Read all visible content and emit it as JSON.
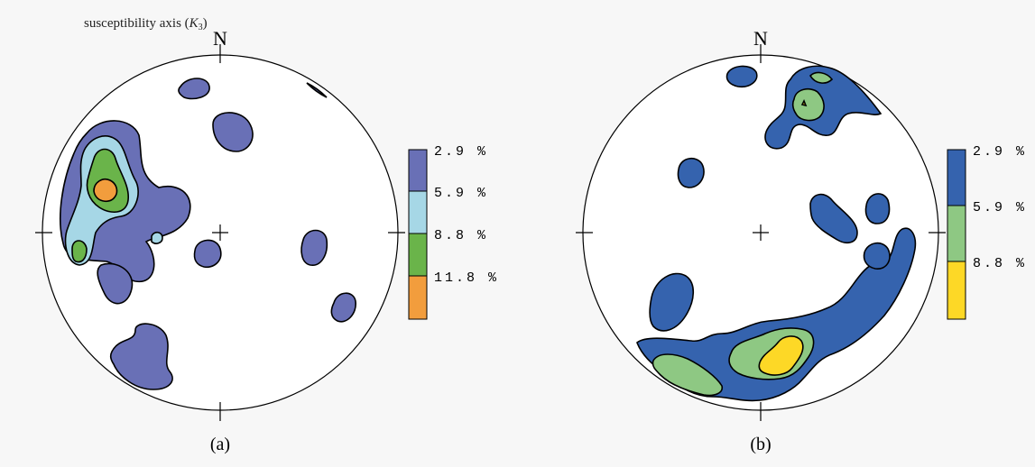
{
  "header": {
    "text_prefix": "susceptibility axis (",
    "k_symbol": "K",
    "k_subscript": "3",
    "text_suffix": ")"
  },
  "colors": {
    "a_level1": "#6970b6",
    "a_level2": "#a6d7e6",
    "a_level3": "#6ab44a",
    "a_level4": "#f29d3d",
    "b_level1": "#3563ae",
    "b_level2": "#8ec883",
    "b_level3": "#fdd826",
    "outline": "#000000",
    "background": "#f7f7f7"
  },
  "panels": [
    {
      "id": "a",
      "north_label": "N",
      "caption": "(a)",
      "legend": [
        "2.9 %",
        "5.9 %",
        "8.8 %",
        "11.8 %"
      ]
    },
    {
      "id": "b",
      "north_label": "N",
      "caption": "(b)",
      "legend": [
        "2.9 %",
        "5.9 %",
        "8.8 %"
      ]
    }
  ]
}
